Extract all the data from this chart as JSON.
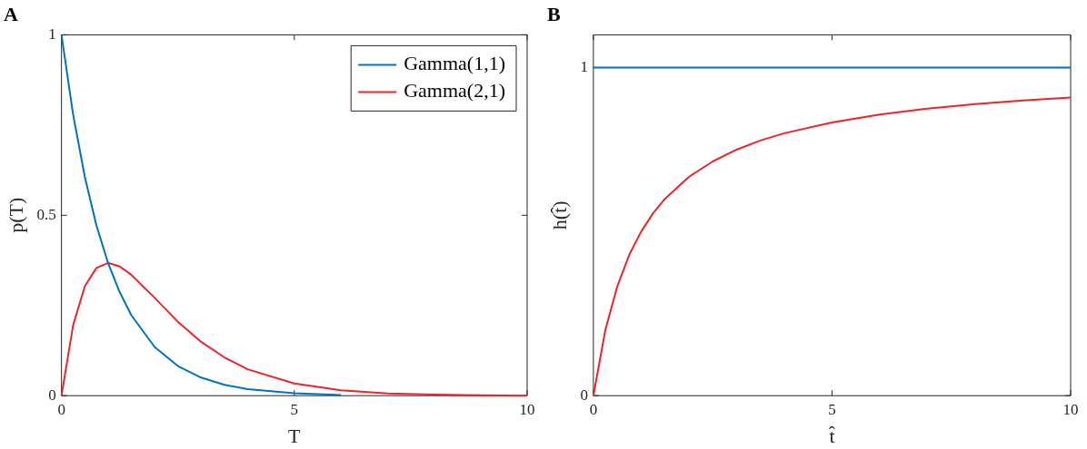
{
  "chart_data": [
    {
      "type": "line",
      "title": "A",
      "xlabel": "T",
      "ylabel": "p(T)",
      "xlim": [
        0,
        10
      ],
      "xticks": [
        0,
        5,
        10
      ],
      "ylim": [
        0,
        1
      ],
      "yticks": [
        0,
        0.5,
        1
      ],
      "grid": false,
      "legend": "top right",
      "marker": "none",
      "line_style": "solid",
      "x": [
        0,
        0.25,
        0.5,
        0.75,
        1,
        1.25,
        1.5,
        2,
        2.5,
        3,
        3.5,
        4,
        5,
        6,
        7,
        8,
        9,
        10
      ],
      "series": [
        {
          "name": "Gamma(1,1)",
          "color": "#0072bd",
          "values": [
            1,
            0.779,
            0.607,
            0.472,
            0.368,
            0.287,
            0.223,
            0.135,
            0.082,
            0.05,
            0.03,
            0.018,
            0.007,
            0.002,
            null,
            null,
            null,
            null
          ]
        },
        {
          "name": "Gamma(2,1)",
          "color": "#e8262a",
          "values": [
            0,
            0.195,
            0.303,
            0.354,
            0.368,
            0.358,
            0.335,
            0.271,
            0.205,
            0.149,
            0.106,
            0.073,
            0.034,
            0.015,
            0.006,
            0.003,
            0.001,
            0
          ]
        }
      ]
    },
    {
      "type": "line",
      "title": "B",
      "xlabel": "t̂",
      "ylabel": "h(t̂)",
      "xlim": [
        0,
        10
      ],
      "xticks": [
        0,
        5,
        10
      ],
      "ylim": [
        0,
        1.1
      ],
      "yticks": [
        0,
        1
      ],
      "grid": false,
      "marker": "none",
      "line_style": "solid",
      "x": [
        0,
        0.25,
        0.5,
        0.75,
        1,
        1.25,
        1.5,
        2,
        2.5,
        3,
        3.5,
        4,
        5,
        6,
        7,
        8,
        9,
        10
      ],
      "series": [
        {
          "color": "#0072bd",
          "values": [
            1,
            1,
            1,
            1,
            1,
            1,
            1,
            1,
            1,
            1,
            1,
            1,
            1,
            1,
            1,
            1,
            1,
            1
          ]
        },
        {
          "color": "#e8262a",
          "values": [
            0,
            0.2,
            0.333,
            0.429,
            0.5,
            0.556,
            0.6,
            0.667,
            0.714,
            0.75,
            0.778,
            0.8,
            0.833,
            0.857,
            0.875,
            0.889,
            0.9,
            0.909
          ]
        }
      ]
    }
  ]
}
